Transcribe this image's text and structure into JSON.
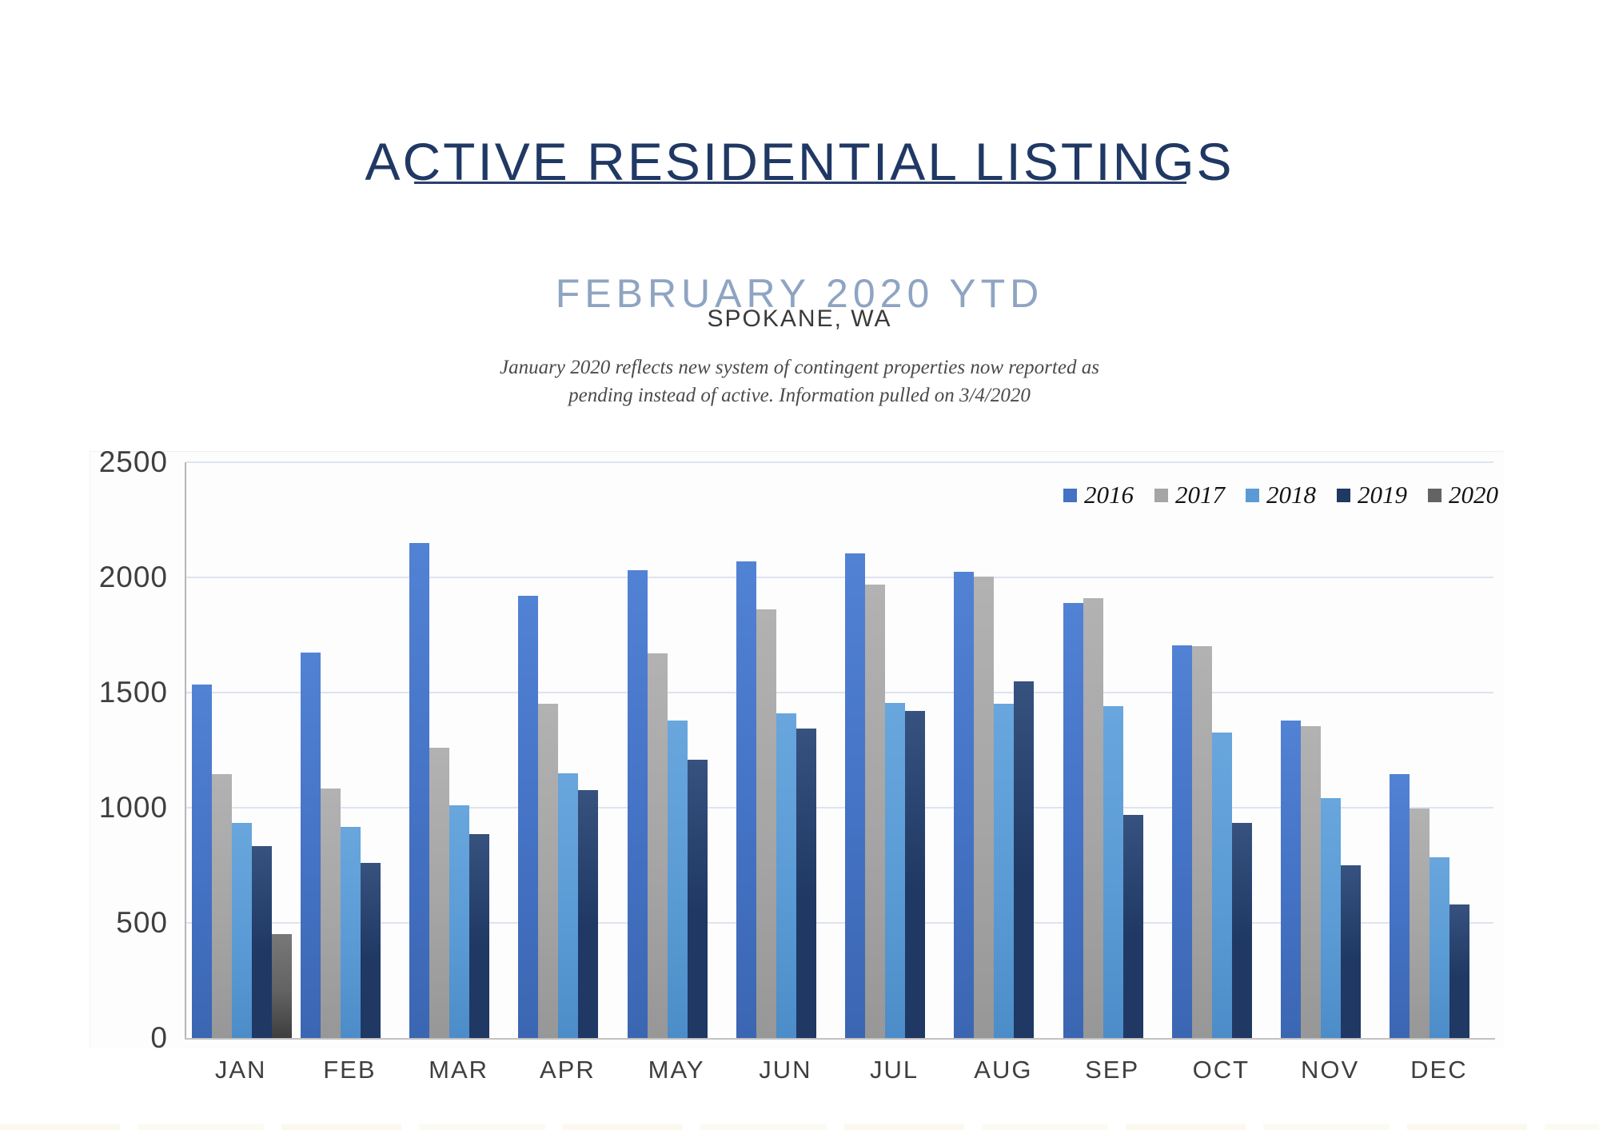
{
  "header": {
    "title": "ACTIVE RESIDENTIAL LISTINGS",
    "subtitle": "FEBRUARY 2020 YTD",
    "location": "SPOKANE, WA",
    "note_line1": "January 2020 reflects new system of contingent properties now reported as",
    "note_line2": "pending instead of active.  Information pulled on 3/4/2020"
  },
  "colors": {
    "title_navy": "#203864",
    "subtitle_blue": "#8ea4c2",
    "text_gray": "#3f3f3f",
    "gridline": "#dee3f0",
    "axis_line": "#b7b7b7"
  },
  "chart_data": {
    "type": "bar",
    "categories": [
      "JAN",
      "FEB",
      "MAR",
      "APR",
      "MAY",
      "JUN",
      "JUL",
      "AUG",
      "SEP",
      "OCT",
      "NOV",
      "DEC"
    ],
    "series": [
      {
        "name": "2016",
        "color": "#4472c4",
        "color_top": "#5282d4",
        "color_bottom": "#3b66b2",
        "values": [
          1535,
          1675,
          2150,
          1920,
          2030,
          2070,
          2105,
          2025,
          1890,
          1705,
          1380,
          1145
        ]
      },
      {
        "name": "2017",
        "color": "#a5a5a5",
        "color_top": "#b2b2b2",
        "color_bottom": "#979797",
        "values": [
          1145,
          1085,
          1260,
          1450,
          1670,
          1860,
          1970,
          2005,
          1910,
          1700,
          1355,
          995
        ]
      },
      {
        "name": "2018",
        "color": "#5b9bd5",
        "color_top": "#68a6dd",
        "color_bottom": "#4c8cc8",
        "values": [
          935,
          915,
          1010,
          1150,
          1380,
          1410,
          1455,
          1450,
          1440,
          1325,
          1040,
          785
        ]
      },
      {
        "name": "2019",
        "color": "#1f3864",
        "color_top": "#37527f",
        "color_bottom": "#1f3864",
        "values": [
          835,
          760,
          885,
          1075,
          1210,
          1345,
          1420,
          1550,
          970,
          935,
          750,
          580
        ]
      },
      {
        "name": "2020",
        "color": "#636363",
        "color_top": "#787878",
        "color_bottom": "#3e3e3e",
        "values": [
          450,
          null,
          null,
          null,
          null,
          null,
          null,
          null,
          null,
          null,
          null,
          null
        ]
      }
    ],
    "ylim": [
      0,
      2500
    ],
    "yticks": [
      0,
      500,
      1000,
      1500,
      2000,
      2500
    ],
    "grid": "horizontal",
    "legend_position": "top-right"
  }
}
